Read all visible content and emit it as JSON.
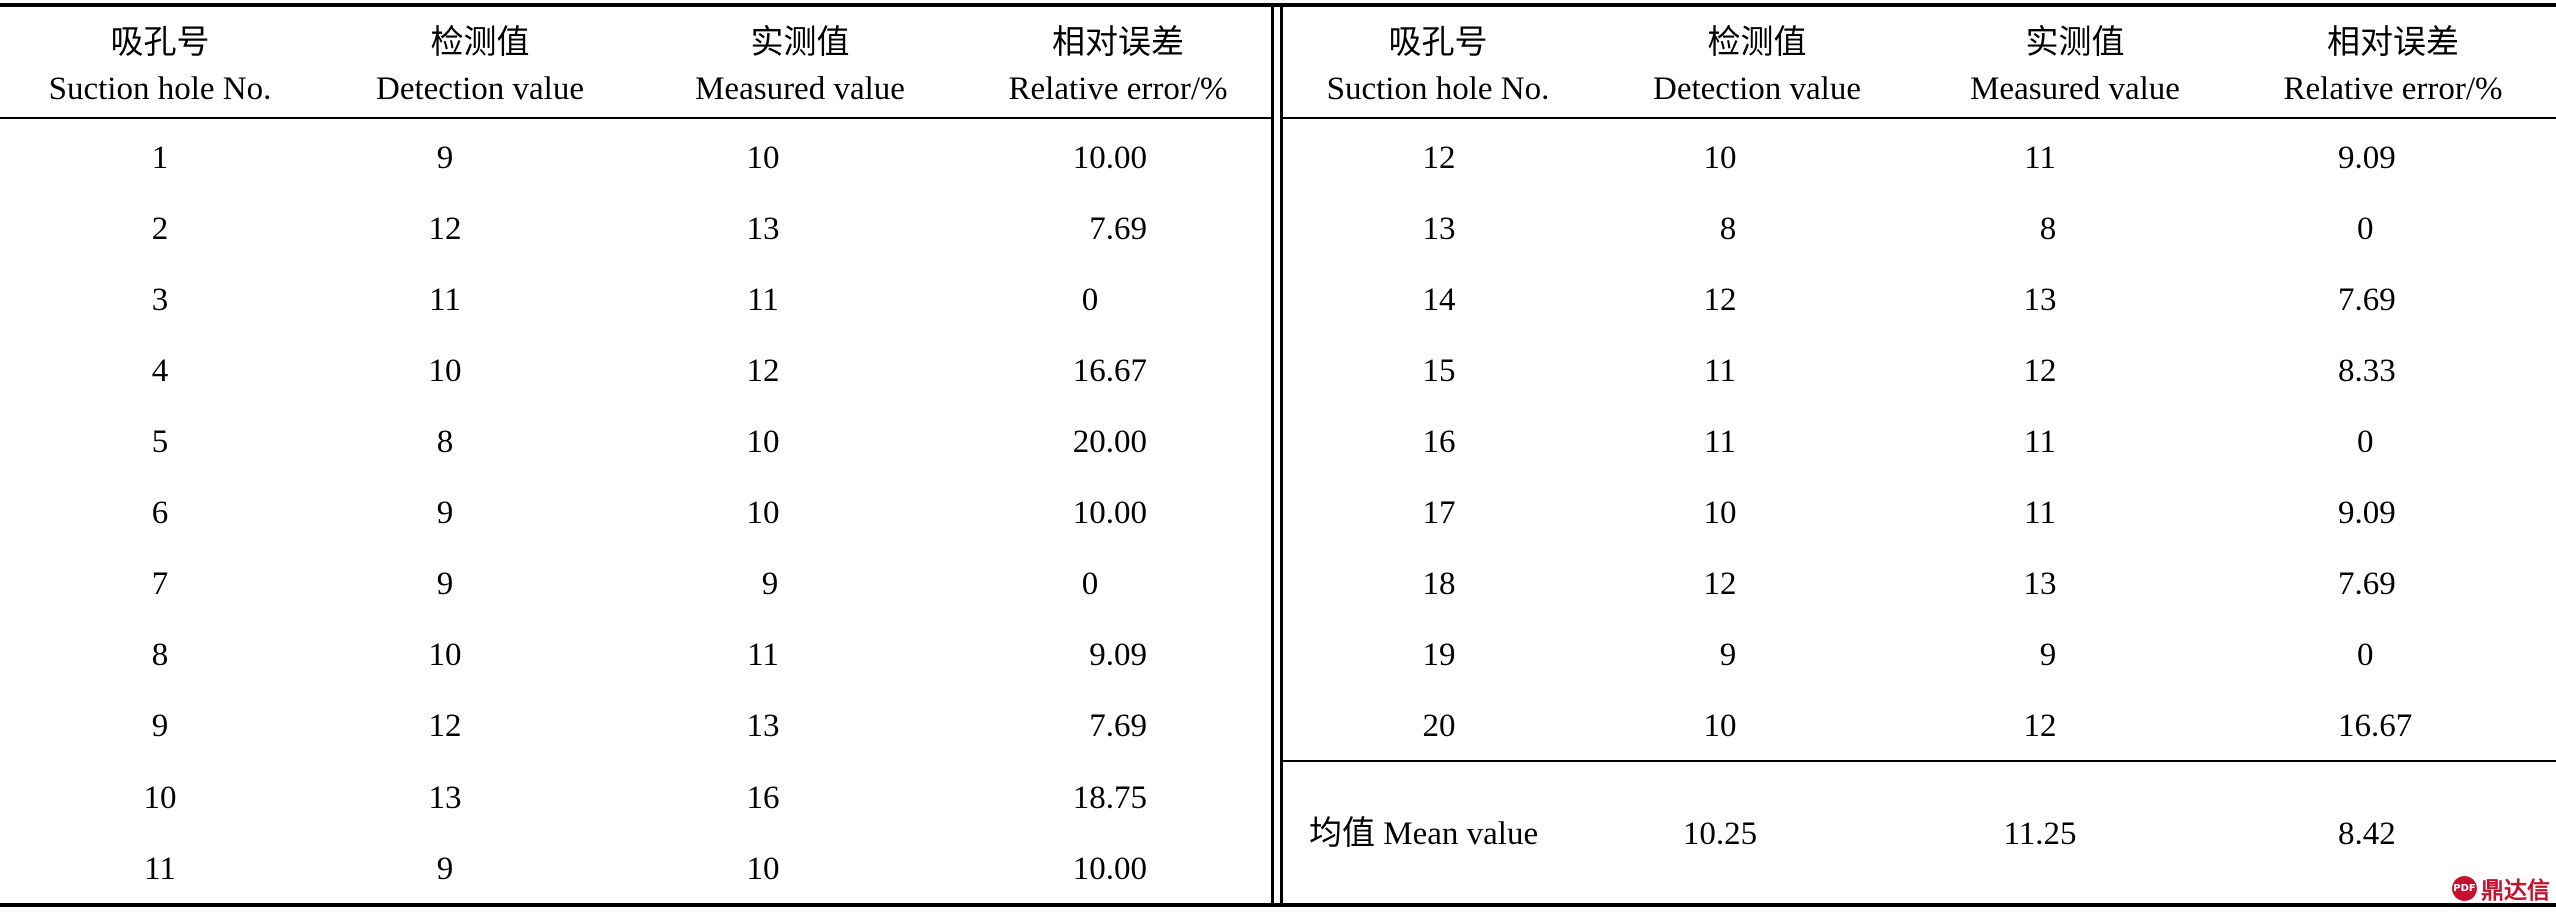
{
  "table": {
    "headers": [
      {
        "zh": "吸孔号",
        "en": "Suction hole No."
      },
      {
        "zh": "检测值",
        "en": "Detection value"
      },
      {
        "zh": "实测值",
        "en": "Measured value"
      },
      {
        "zh": "相对误差",
        "en": "Relative error/%"
      }
    ],
    "left_rows": [
      {
        "hole": "1",
        "detection": "9",
        "measured": "10",
        "error": "10.00"
      },
      {
        "hole": "2",
        "detection": "12",
        "measured": "13",
        "error": "7.69"
      },
      {
        "hole": "3",
        "detection": "11",
        "measured": "11",
        "error": "0"
      },
      {
        "hole": "4",
        "detection": "10",
        "measured": "12",
        "error": "16.67"
      },
      {
        "hole": "5",
        "detection": "8",
        "measured": "10",
        "error": "20.00"
      },
      {
        "hole": "6",
        "detection": "9",
        "measured": "10",
        "error": "10.00"
      },
      {
        "hole": "7",
        "detection": "9",
        "measured": "9",
        "error": "0"
      },
      {
        "hole": "8",
        "detection": "10",
        "measured": "11",
        "error": "9.09"
      },
      {
        "hole": "9",
        "detection": "12",
        "measured": "13",
        "error": "7.69"
      },
      {
        "hole": "10",
        "detection": "13",
        "measured": "16",
        "error": "18.75"
      },
      {
        "hole": "11",
        "detection": "9",
        "measured": "10",
        "error": "10.00"
      }
    ],
    "right_rows": [
      {
        "hole": "12",
        "detection": "10",
        "measured": "11",
        "error": "9.09"
      },
      {
        "hole": "13",
        "detection": "8",
        "measured": "8",
        "error": "0"
      },
      {
        "hole": "14",
        "detection": "12",
        "measured": "13",
        "error": "7.69"
      },
      {
        "hole": "15",
        "detection": "11",
        "measured": "12",
        "error": "8.33"
      },
      {
        "hole": "16",
        "detection": "11",
        "measured": "11",
        "error": "0"
      },
      {
        "hole": "17",
        "detection": "10",
        "measured": "11",
        "error": "9.09"
      },
      {
        "hole": "18",
        "detection": "12",
        "measured": "13",
        "error": "7.69"
      },
      {
        "hole": "19",
        "detection": "9",
        "measured": "9",
        "error": "0"
      },
      {
        "hole": "20",
        "detection": "10",
        "measured": "12",
        "error": "16.67"
      }
    ],
    "mean_row": {
      "label": "均值 Mean value",
      "detection": "10.25",
      "measured": "11.25",
      "error": "8.42"
    }
  },
  "watermark": {
    "badge": "PDF",
    "text": "鼎达信",
    "color": "#c8102e"
  }
}
